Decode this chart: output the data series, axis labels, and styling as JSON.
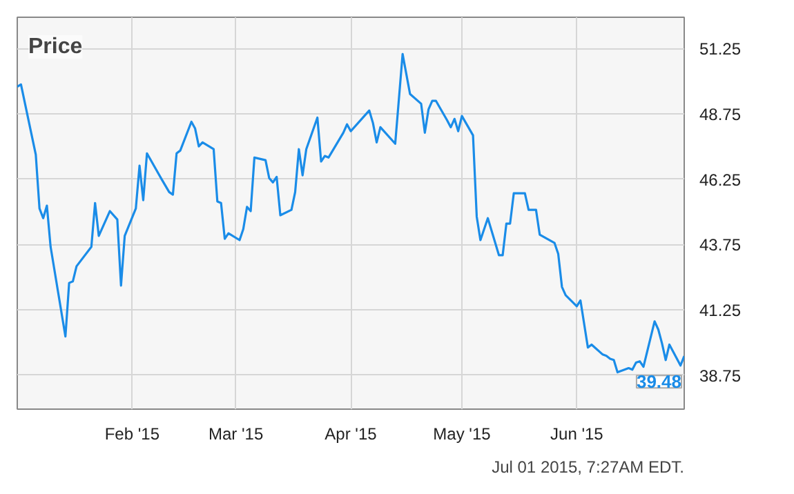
{
  "chart_data": {
    "type": "line",
    "title": "Price",
    "x": [
      "2015-01-01",
      "2015-01-02",
      "2015-01-06",
      "2015-01-07",
      "2015-01-08",
      "2015-01-09",
      "2015-01-10",
      "2015-01-14",
      "2015-01-15",
      "2015-01-16",
      "2015-01-17",
      "2015-01-21",
      "2015-01-22",
      "2015-01-23",
      "2015-01-26",
      "2015-01-28",
      "2015-01-29",
      "2015-01-30",
      "2015-02-02",
      "2015-02-03",
      "2015-02-04",
      "2015-02-05",
      "2015-02-09",
      "2015-02-11",
      "2015-02-12",
      "2015-02-13",
      "2015-02-14",
      "2015-02-17",
      "2015-02-18",
      "2015-02-19",
      "2015-02-20",
      "2015-02-23",
      "2015-02-24",
      "2015-02-25",
      "2015-02-26",
      "2015-02-27",
      "2015-03-02",
      "2015-03-03",
      "2015-03-04",
      "2015-03-05",
      "2015-03-06",
      "2015-03-09",
      "2015-03-10",
      "2015-03-11",
      "2015-03-12",
      "2015-03-13",
      "2015-03-16",
      "2015-03-17",
      "2015-03-18",
      "2015-03-19",
      "2015-03-20",
      "2015-03-23",
      "2015-03-24",
      "2015-03-25",
      "2015-03-26",
      "2015-03-30",
      "2015-03-31",
      "2015-04-01",
      "2015-04-06",
      "2015-04-07",
      "2015-04-08",
      "2015-04-09",
      "2015-04-13",
      "2015-04-15",
      "2015-04-17",
      "2015-04-20",
      "2015-04-21",
      "2015-04-22",
      "2015-04-23",
      "2015-04-24",
      "2015-04-27",
      "2015-04-28",
      "2015-04-29",
      "2015-04-30",
      "2015-05-01",
      "2015-05-04",
      "2015-05-05",
      "2015-05-06",
      "2015-05-08",
      "2015-05-11",
      "2015-05-12",
      "2015-05-13",
      "2015-05-14",
      "2015-05-15",
      "2015-05-18",
      "2015-05-19",
      "2015-05-21",
      "2015-05-22",
      "2015-05-26",
      "2015-05-27",
      "2015-05-28",
      "2015-05-29",
      "2015-06-01",
      "2015-06-02",
      "2015-06-04",
      "2015-06-05",
      "2015-06-08",
      "2015-06-09",
      "2015-06-10",
      "2015-06-11",
      "2015-06-12",
      "2015-06-15",
      "2015-06-16",
      "2015-06-17",
      "2015-06-18",
      "2015-06-19",
      "2015-06-22",
      "2015-06-23",
      "2015-06-24",
      "2015-06-25",
      "2015-06-26",
      "2015-06-29",
      "2015-06-30"
    ],
    "series": [
      {
        "color": "#1a8ce8",
        "values": [
          49.79,
          49.88,
          47.19,
          45.13,
          44.76,
          45.24,
          43.66,
          40.23,
          42.28,
          42.34,
          42.92,
          43.66,
          45.34,
          44.08,
          45.03,
          44.71,
          42.18,
          44.08,
          45.13,
          46.77,
          45.45,
          47.24,
          46.24,
          45.76,
          45.66,
          47.24,
          47.35,
          48.45,
          48.19,
          47.51,
          47.66,
          47.4,
          45.4,
          45.34,
          43.97,
          44.18,
          43.92,
          44.34,
          45.19,
          45.03,
          47.08,
          46.98,
          46.29,
          46.13,
          46.34,
          44.87,
          45.08,
          45.76,
          47.4,
          46.4,
          47.4,
          48.61,
          46.93,
          47.14,
          47.08,
          48.03,
          48.35,
          48.09,
          48.88,
          48.4,
          47.66,
          48.24,
          47.61,
          51.04,
          49.51,
          49.14,
          48.03,
          48.93,
          49.25,
          49.25,
          48.51,
          48.24,
          48.56,
          48.09,
          48.67,
          47.93,
          44.82,
          43.92,
          44.76,
          43.34,
          43.34,
          44.55,
          44.55,
          45.71,
          45.71,
          45.08,
          45.08,
          44.13,
          43.81,
          43.39,
          42.13,
          41.81,
          41.39,
          41.61,
          39.81,
          39.92,
          39.54,
          39.49,
          39.38,
          39.33,
          38.86,
          39.02,
          38.96,
          39.23,
          39.28,
          39.07,
          40.81,
          40.5,
          39.97,
          39.33,
          39.92,
          39.12,
          39.48
        ]
      }
    ],
    "xlim": [
      "2015-01-01",
      "2015-06-30"
    ],
    "xticks": [
      {
        "value": "2015-02-01",
        "label": "Feb '15"
      },
      {
        "value": "2015-03-01",
        "label": "Mar '15"
      },
      {
        "value": "2015-04-01",
        "label": "Apr '15"
      },
      {
        "value": "2015-05-01",
        "label": "May '15"
      },
      {
        "value": "2015-06-01",
        "label": "Jun '15"
      }
    ],
    "ylim": [
      37.45,
      52.45
    ],
    "yticks": [
      38.75,
      41.25,
      43.75,
      46.25,
      48.75,
      51.25
    ],
    "grid": true,
    "marker": "none",
    "line_style": "solid",
    "annotations": [
      {
        "text": "39.48",
        "x": "2015-06-30",
        "y": 39.48
      },
      "Jul 01 2015, 7:27AM EDT."
    ]
  }
}
